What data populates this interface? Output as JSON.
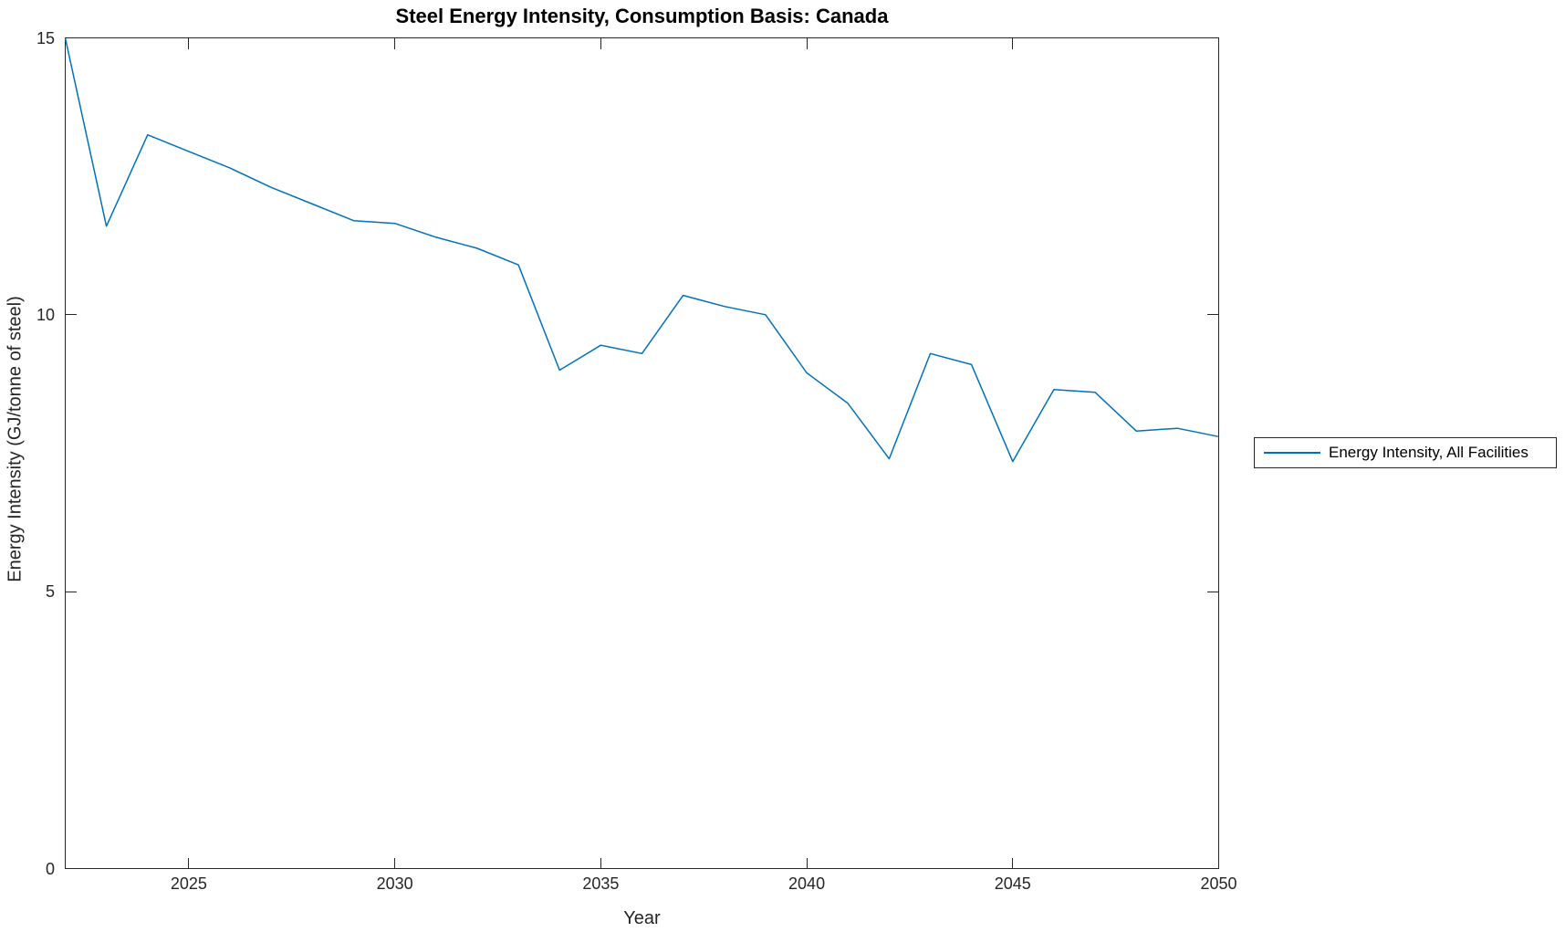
{
  "figure": {
    "title": "Steel Energy Intensity, Consumption Basis: Canada",
    "xlabel": "Year",
    "ylabel": "Energy Intensity (GJ/tonne of steel)"
  },
  "legend": {
    "entries": [
      {
        "label": "Energy Intensity, All Facilities",
        "color": "#0072BD"
      }
    ],
    "position": "outside-right",
    "border_color": "#262626"
  },
  "colors": {
    "line": "#0072BD",
    "axis": "#262626",
    "title": "#000000",
    "background": "#ffffff"
  },
  "chart_data": {
    "type": "line",
    "title": "Steel Energy Intensity, Consumption Basis: Canada",
    "xlabel": "Year",
    "ylabel": "Energy Intensity (GJ/tonne of steel)",
    "x": [
      2022,
      2023,
      2024,
      2025,
      2026,
      2027,
      2028,
      2029,
      2030,
      2031,
      2032,
      2033,
      2034,
      2035,
      2036,
      2037,
      2038,
      2039,
      2040,
      2041,
      2042,
      2043,
      2044,
      2045,
      2046,
      2047,
      2048,
      2049,
      2050
    ],
    "series": [
      {
        "name": "Energy Intensity, All Facilities",
        "color": "#0072BD",
        "values": [
          15.0,
          11.6,
          13.25,
          12.95,
          12.65,
          12.3,
          12.0,
          11.7,
          11.65,
          11.4,
          11.2,
          10.9,
          9.0,
          9.45,
          9.3,
          10.35,
          10.15,
          10.0,
          8.95,
          8.4,
          7.4,
          9.3,
          9.1,
          7.35,
          8.65,
          8.6,
          7.9,
          7.95,
          7.8
        ]
      }
    ],
    "xlim": [
      2022,
      2050
    ],
    "ylim": [
      0,
      15
    ],
    "xticks": [
      2025,
      2030,
      2035,
      2040,
      2045,
      2050
    ],
    "yticks": [
      0,
      5,
      10,
      15
    ],
    "grid": false,
    "box": true,
    "tick_direction": "in",
    "legend_position": "outside-right"
  }
}
